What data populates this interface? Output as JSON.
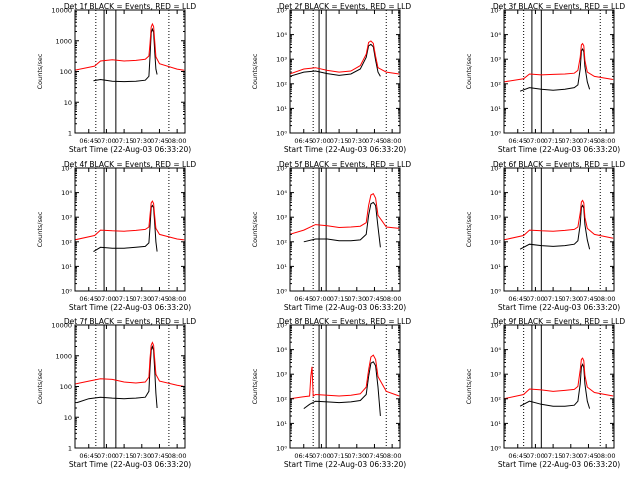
{
  "colors": {
    "events": "#000000",
    "lld": "#ff0000",
    "markers": "#000000"
  },
  "shared": {
    "xlabel": "Start Time (22-Aug-03 06:33:20)",
    "ylabel": "Counts/sec"
  },
  "chart_data": [
    {
      "type": "line",
      "title": "Det 1f BLACK = Events, RED = LLD",
      "ylabel": "Counts/sec",
      "xlabel": "Start Time (22-Aug-03 06:33:20)",
      "y_scale": "log",
      "ylim": [
        1,
        10000
      ],
      "y_ticks": [
        "1",
        "10",
        "100",
        "1000",
        "10000"
      ],
      "x_ticks": [
        "06:45",
        "07:00",
        "07:15",
        "07:30",
        "07:45",
        "08:00"
      ],
      "xlim": [
        "06:33:20",
        "08:06:40"
      ],
      "vertical_markers": {
        "dotted": [
          "06:51",
          "07:53"
        ],
        "solid": [
          "06:58",
          "07:08"
        ]
      },
      "series": [
        {
          "name": "Events",
          "x": [
            "06:49",
            "06:55",
            "07:05",
            "07:15",
            "07:25",
            "07:33",
            "07:36",
            "07:37",
            "07:38",
            "07:39",
            "07:40",
            "07:41",
            "07:42",
            "07:43"
          ],
          "values": [
            50,
            55,
            48,
            47,
            48,
            52,
            70,
            300,
            1800,
            2400,
            1900,
            400,
            120,
            80
          ]
        },
        {
          "name": "LLD",
          "x": [
            "06:33",
            "06:50",
            "06:55",
            "07:05",
            "07:15",
            "07:25",
            "07:33",
            "07:36",
            "07:37",
            "07:38",
            "07:39",
            "07:40",
            "07:41",
            "07:42",
            "07:45",
            "08:00",
            "08:06"
          ],
          "values": [
            110,
            150,
            220,
            240,
            220,
            230,
            250,
            320,
            800,
            2800,
            3500,
            2900,
            900,
            300,
            180,
            120,
            110
          ]
        }
      ]
    },
    {
      "type": "line",
      "title": "Det 2f BLACK = Events, RED = LLD",
      "ylabel": "Counts/sec",
      "xlabel": "Start Time (22-Aug-03 06:33:20)",
      "y_scale": "log",
      "ylim": [
        1,
        100000
      ],
      "y_ticks": [
        "10⁰",
        "10¹",
        "10²",
        "10³",
        "10⁴",
        "10⁵"
      ],
      "x_ticks": [
        "06:45",
        "07:00",
        "07:15",
        "07:30",
        "07:45",
        "08:00"
      ],
      "xlim": [
        "06:33:20",
        "08:06:40"
      ],
      "vertical_markers": {
        "dotted": [
          "06:53",
          "07:55"
        ],
        "solid": [
          "06:58",
          "07:04"
        ]
      },
      "series": [
        {
          "name": "Events",
          "x": [
            "06:33",
            "06:45",
            "06:55",
            "07:05",
            "07:15",
            "07:25",
            "07:33",
            "07:38",
            "07:40",
            "07:42",
            "07:44",
            "07:46",
            "07:48",
            "07:50"
          ],
          "values": [
            200,
            300,
            330,
            260,
            220,
            250,
            400,
            1200,
            3500,
            4000,
            3200,
            900,
            300,
            200
          ]
        },
        {
          "name": "LLD",
          "x": [
            "06:33",
            "06:45",
            "06:55",
            "07:05",
            "07:15",
            "07:25",
            "07:33",
            "07:38",
            "07:40",
            "07:42",
            "07:44",
            "07:46",
            "07:48",
            "07:55",
            "08:06"
          ],
          "values": [
            250,
            400,
            450,
            350,
            300,
            330,
            550,
            1600,
            4800,
            5500,
            4400,
            1300,
            450,
            300,
            250
          ]
        }
      ]
    },
    {
      "type": "line",
      "title": "Det 3f BLACK = Events, RED = LLD",
      "ylabel": "Counts/sec",
      "xlabel": "Start Time (22-Aug-03 06:33:20)",
      "y_scale": "log",
      "ylim": [
        1,
        100000
      ],
      "y_ticks": [
        "10⁰",
        "10¹",
        "10²",
        "10³",
        "10⁴",
        "10⁵"
      ],
      "x_ticks": [
        "06:45",
        "07:00",
        "07:15",
        "07:30",
        "07:45",
        "08:00"
      ],
      "xlim": [
        "06:33:20",
        "08:06:40"
      ],
      "vertical_markers": {
        "dotted": [
          "06:50",
          "07:55"
        ],
        "solid": [
          "06:57",
          "07:05"
        ]
      },
      "series": [
        {
          "name": "Events",
          "x": [
            "06:47",
            "06:55",
            "07:05",
            "07:15",
            "07:25",
            "07:33",
            "07:36",
            "07:38",
            "07:39",
            "07:40",
            "07:41",
            "07:42",
            "07:44",
            "07:46"
          ],
          "values": [
            50,
            70,
            60,
            55,
            60,
            70,
            90,
            400,
            2200,
            2600,
            2000,
            500,
            120,
            60
          ]
        },
        {
          "name": "LLD",
          "x": [
            "06:33",
            "06:50",
            "06:55",
            "07:05",
            "07:15",
            "07:25",
            "07:33",
            "07:36",
            "07:38",
            "07:39",
            "07:40",
            "07:41",
            "07:42",
            "07:44",
            "07:50",
            "08:06"
          ],
          "values": [
            120,
            160,
            250,
            230,
            240,
            250,
            270,
            350,
            1200,
            3800,
            4300,
            3500,
            900,
            300,
            200,
            150
          ]
        }
      ]
    },
    {
      "type": "line",
      "title": "Det 4f BLACK = Events, RED = LLD",
      "ylabel": "Counts/sec",
      "xlabel": "Start Time (22-Aug-03 06:33:20)",
      "y_scale": "log",
      "ylim": [
        1,
        100000
      ],
      "y_ticks": [
        "10⁰",
        "10¹",
        "10²",
        "10³",
        "10⁴",
        "10⁵"
      ],
      "x_ticks": [
        "06:45",
        "07:00",
        "07:15",
        "07:30",
        "07:45",
        "08:00"
      ],
      "xlim": [
        "06:33:20",
        "08:06:40"
      ],
      "vertical_markers": {
        "dotted": [
          "06:51",
          "07:53"
        ],
        "solid": [
          "06:58",
          "07:08"
        ]
      },
      "series": [
        {
          "name": "Events",
          "x": [
            "06:49",
            "06:55",
            "07:05",
            "07:15",
            "07:25",
            "07:33",
            "07:36",
            "07:37",
            "07:38",
            "07:39",
            "07:40",
            "07:41",
            "07:42",
            "07:43"
          ],
          "values": [
            40,
            60,
            55,
            55,
            60,
            65,
            90,
            400,
            2500,
            3000,
            2400,
            500,
            100,
            40
          ]
        },
        {
          "name": "LLD",
          "x": [
            "06:33",
            "06:50",
            "06:55",
            "07:05",
            "07:15",
            "07:25",
            "07:33",
            "07:36",
            "07:37",
            "07:38",
            "07:39",
            "07:40",
            "07:41",
            "07:42",
            "07:45",
            "08:00",
            "08:06"
          ],
          "values": [
            120,
            180,
            300,
            280,
            270,
            290,
            320,
            400,
            1200,
            3800,
            4500,
            3600,
            1000,
            350,
            200,
            130,
            120
          ]
        }
      ]
    },
    {
      "type": "line",
      "title": "Det 5f BLACK = Events, RED = LLD",
      "ylabel": "Counts/sec",
      "xlabel": "Start Time (22-Aug-03 06:33:20)",
      "y_scale": "log",
      "ylim": [
        1,
        100000
      ],
      "y_ticks": [
        "10⁰",
        "10¹",
        "10²",
        "10³",
        "10⁴",
        "10⁵"
      ],
      "x_ticks": [
        "06:45",
        "07:00",
        "07:15",
        "07:30",
        "07:45",
        "08:00"
      ],
      "xlim": [
        "06:33:20",
        "08:06:40"
      ],
      "vertical_markers": {
        "dotted": [
          "06:53",
          "07:55"
        ],
        "solid": [
          "06:58",
          "07:04"
        ]
      },
      "series": [
        {
          "name": "Events",
          "x": [
            "06:45",
            "06:55",
            "07:05",
            "07:15",
            "07:25",
            "07:33",
            "07:38",
            "07:40",
            "07:42",
            "07:44",
            "07:46",
            "07:48",
            "07:50"
          ],
          "values": [
            100,
            130,
            130,
            110,
            110,
            120,
            200,
            1200,
            3500,
            4000,
            3000,
            400,
            60
          ]
        },
        {
          "name": "LLD",
          "x": [
            "06:33",
            "06:45",
            "06:55",
            "07:05",
            "07:15",
            "07:25",
            "07:33",
            "07:38",
            "07:40",
            "07:42",
            "07:44",
            "07:46",
            "07:48",
            "07:55",
            "08:06"
          ],
          "values": [
            200,
            300,
            500,
            450,
            380,
            400,
            430,
            600,
            3000,
            8000,
            9000,
            6000,
            1200,
            400,
            350
          ]
        }
      ]
    },
    {
      "type": "line",
      "title": "Det 6f BLACK = Events, RED = LLD",
      "ylabel": "Counts/sec",
      "xlabel": "Start Time (22-Aug-03 06:33:20)",
      "y_scale": "log",
      "ylim": [
        1,
        100000
      ],
      "y_ticks": [
        "10⁰",
        "10¹",
        "10²",
        "10³",
        "10⁴",
        "10⁵"
      ],
      "x_ticks": [
        "06:45",
        "07:00",
        "07:15",
        "07:30",
        "07:45",
        "08:00"
      ],
      "xlim": [
        "06:33:20",
        "08:06:40"
      ],
      "vertical_markers": {
        "dotted": [
          "06:50",
          "07:55"
        ],
        "solid": [
          "06:57",
          "07:05"
        ]
      },
      "series": [
        {
          "name": "Events",
          "x": [
            "06:47",
            "06:55",
            "07:05",
            "07:15",
            "07:25",
            "07:33",
            "07:36",
            "07:38",
            "07:39",
            "07:40",
            "07:41",
            "07:42",
            "07:44",
            "07:46"
          ],
          "values": [
            50,
            80,
            70,
            65,
            70,
            80,
            110,
            500,
            2500,
            3000,
            2300,
            500,
            120,
            50
          ]
        },
        {
          "name": "LLD",
          "x": [
            "06:33",
            "06:50",
            "06:55",
            "07:05",
            "07:15",
            "07:25",
            "07:33",
            "07:36",
            "07:38",
            "07:39",
            "07:40",
            "07:41",
            "07:42",
            "07:44",
            "07:50",
            "08:06"
          ],
          "values": [
            120,
            180,
            300,
            280,
            270,
            290,
            320,
            400,
            1500,
            4200,
            4800,
            3800,
            1000,
            350,
            200,
            140
          ]
        }
      ]
    },
    {
      "type": "line",
      "title": "Det 7f BLACK = Events, RED = LLD",
      "ylabel": "Counts/sec",
      "xlabel": "Start Time (22-Aug-03 06:33:20)",
      "y_scale": "log",
      "ylim": [
        1,
        10000
      ],
      "y_ticks": [
        "1",
        "10",
        "100",
        "1000",
        "10000"
      ],
      "x_ticks": [
        "06:45",
        "07:00",
        "07:15",
        "07:30",
        "07:45",
        "08:00"
      ],
      "xlim": [
        "06:33:20",
        "08:06:40"
      ],
      "vertical_markers": {
        "dotted": [
          "06:51",
          "07:53"
        ],
        "solid": [
          "06:58",
          "07:08"
        ]
      },
      "series": [
        {
          "name": "Events",
          "x": [
            "06:35",
            "06:45",
            "06:55",
            "07:05",
            "07:15",
            "07:25",
            "07:33",
            "07:36",
            "07:37",
            "07:38",
            "07:39",
            "07:40",
            "07:41",
            "07:42",
            "07:43"
          ],
          "values": [
            30,
            40,
            45,
            42,
            40,
            42,
            45,
            70,
            400,
            1500,
            2000,
            1500,
            300,
            60,
            20
          ]
        },
        {
          "name": "LLD",
          "x": [
            "06:33",
            "06:45",
            "06:55",
            "07:05",
            "07:15",
            "07:25",
            "07:33",
            "07:36",
            "07:37",
            "07:38",
            "07:39",
            "07:40",
            "07:41",
            "07:42",
            "07:45",
            "08:00",
            "08:06"
          ],
          "values": [
            120,
            150,
            180,
            170,
            140,
            130,
            140,
            200,
            800,
            2200,
            2700,
            2200,
            700,
            250,
            150,
            110,
            100
          ]
        }
      ]
    },
    {
      "type": "line",
      "title": "Det 8f BLACK = Events, RED = LLD",
      "ylabel": "Counts/sec",
      "xlabel": "Start Time (22-Aug-03 06:33:20)",
      "y_scale": "log",
      "ylim": [
        1,
        100000
      ],
      "y_ticks": [
        "10⁰",
        "10¹",
        "10²",
        "10³",
        "10⁴",
        "10⁵"
      ],
      "x_ticks": [
        "06:45",
        "07:00",
        "07:15",
        "07:30",
        "07:45",
        "08:00"
      ],
      "xlim": [
        "06:33:20",
        "08:06:40"
      ],
      "vertical_markers": {
        "dotted": [
          "06:53",
          "07:55"
        ],
        "solid": [
          "06:58",
          "07:04"
        ]
      },
      "series": [
        {
          "name": "Events",
          "x": [
            "06:45",
            "06:50",
            "06:55",
            "07:05",
            "07:15",
            "07:25",
            "07:33",
            "07:38",
            "07:40",
            "07:42",
            "07:44",
            "07:46",
            "07:48",
            "07:50"
          ],
          "values": [
            40,
            60,
            80,
            75,
            70,
            75,
            85,
            150,
            800,
            2800,
            3200,
            2200,
            300,
            20
          ]
        },
        {
          "name": "LLD",
          "x": [
            "06:33",
            "06:44",
            "06:50",
            "06:51",
            "06:52",
            "06:53",
            "06:55",
            "07:05",
            "07:15",
            "07:25",
            "07:33",
            "07:38",
            "07:40",
            "07:42",
            "07:44",
            "07:46",
            "07:48",
            "07:55",
            "08:06"
          ],
          "values": [
            100,
            120,
            130,
            800,
            2000,
            130,
            150,
            140,
            130,
            140,
            160,
            300,
            1500,
            5000,
            6000,
            4000,
            800,
            200,
            130
          ]
        }
      ]
    },
    {
      "type": "line",
      "title": "Det 9f BLACK = Events, RED = LLD",
      "ylabel": "Counts/sec",
      "xlabel": "Start Time (22-Aug-03 06:33:20)",
      "y_scale": "log",
      "ylim": [
        1,
        100000
      ],
      "y_ticks": [
        "10⁰",
        "10¹",
        "10²",
        "10³",
        "10⁴",
        "10⁵"
      ],
      "x_ticks": [
        "06:45",
        "07:00",
        "07:15",
        "07:30",
        "07:45",
        "08:00"
      ],
      "xlim": [
        "06:33:20",
        "08:06:40"
      ],
      "vertical_markers": {
        "dotted": [
          "06:50",
          "07:55"
        ],
        "solid": [
          "06:57",
          "07:05"
        ]
      },
      "series": [
        {
          "name": "Events",
          "x": [
            "06:47",
            "06:55",
            "07:05",
            "07:15",
            "07:25",
            "07:33",
            "07:36",
            "07:38",
            "07:39",
            "07:40",
            "07:41",
            "07:42",
            "07:44",
            "07:46"
          ],
          "values": [
            50,
            80,
            60,
            50,
            50,
            55,
            80,
            400,
            2000,
            2500,
            1800,
            400,
            80,
            40
          ]
        },
        {
          "name": "LLD",
          "x": [
            "06:33",
            "06:50",
            "06:55",
            "07:05",
            "07:15",
            "07:25",
            "07:33",
            "07:36",
            "07:38",
            "07:39",
            "07:40",
            "07:41",
            "07:42",
            "07:44",
            "07:50",
            "08:06"
          ],
          "values": [
            100,
            150,
            250,
            230,
            200,
            220,
            240,
            320,
            1500,
            4000,
            4500,
            3500,
            900,
            300,
            180,
            130
          ]
        }
      ]
    }
  ]
}
